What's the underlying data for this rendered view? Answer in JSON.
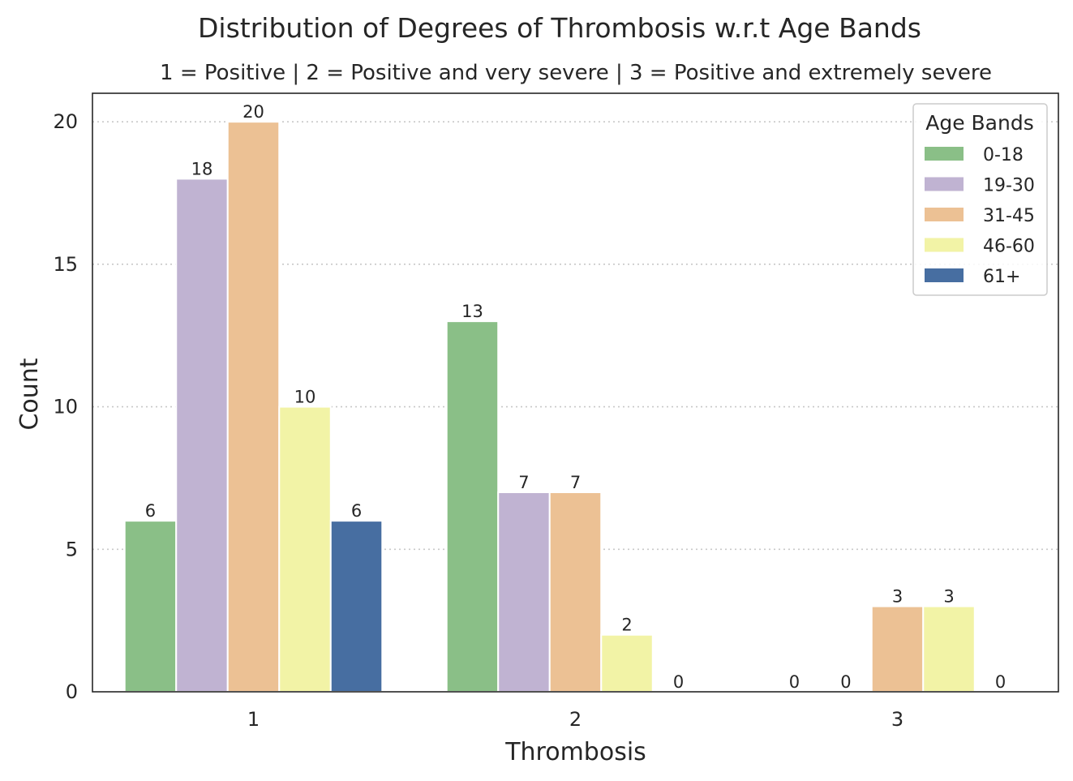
{
  "chart_data": {
    "type": "bar",
    "title": "Distribution of Degrees of Thrombosis w.r.t Age Bands",
    "subtitle": "1 = Positive | 2 = Positive and very severe | 3 = Positive and extremely severe",
    "xlabel": "Thrombosis",
    "ylabel": "Count",
    "categories": [
      "1",
      "2",
      "3"
    ],
    "ylim": [
      0,
      21
    ],
    "yticks": [
      0,
      5,
      10,
      15,
      20
    ],
    "grid": "horizontal dotted",
    "legend_title": "Age Bands",
    "legend_position": "top-right",
    "series": [
      {
        "name": "0-18",
        "color": "#8abf87",
        "values": [
          6,
          13,
          0
        ]
      },
      {
        "name": "19-30",
        "color": "#c0b3d2",
        "values": [
          18,
          7,
          0
        ]
      },
      {
        "name": "31-45",
        "color": "#ecc194",
        "values": [
          20,
          7,
          3
        ]
      },
      {
        "name": "46-60",
        "color": "#f2f3a6",
        "values": [
          10,
          2,
          3
        ]
      },
      {
        "name": "61+",
        "color": "#476ea1",
        "values": [
          6,
          0,
          0
        ]
      }
    ]
  }
}
